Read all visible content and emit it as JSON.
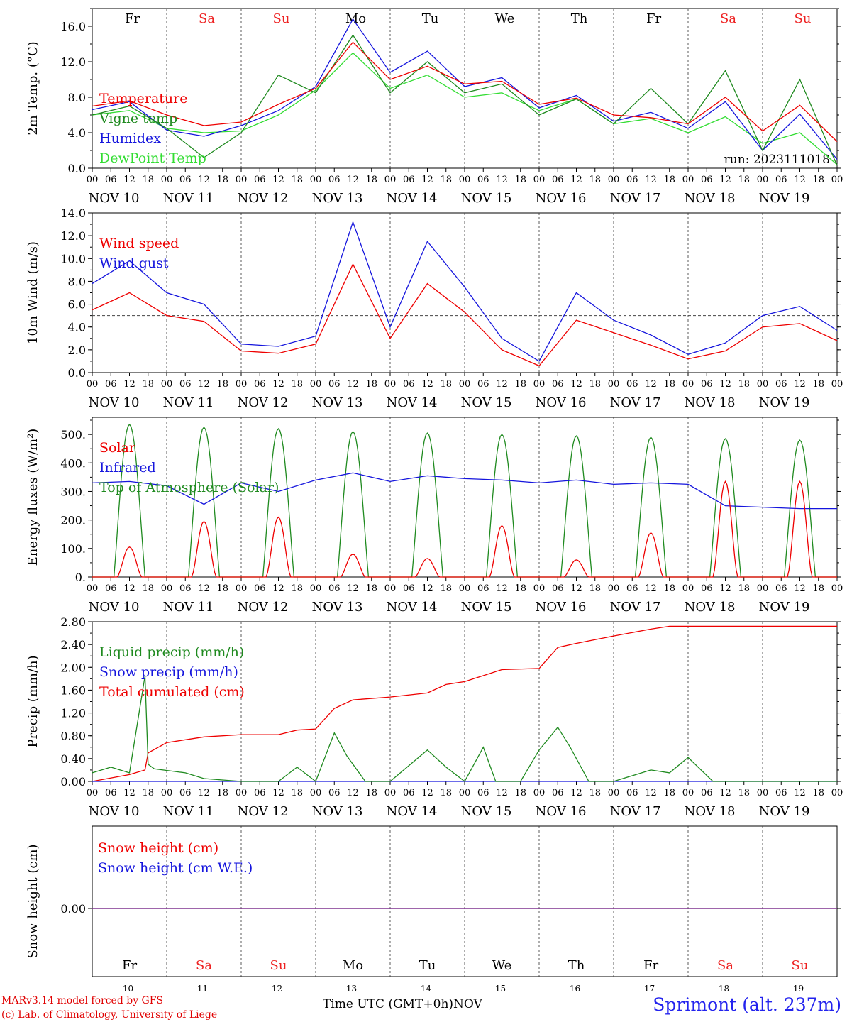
{
  "footer": {
    "model_line": "MARv3.14 model forced by GFS",
    "credit_line": "(c) Lab. of Climatology, University of Liege",
    "time_axis": "Time UTC (GMT+0h)",
    "month": "NOV",
    "station": "Sprimont (alt. 237m)"
  },
  "colors": {
    "red": "#ee0000",
    "green": "#1f8a1f",
    "blue": "#1515dd",
    "lightgreen": "#33dd33",
    "purple": "#7a2a8a",
    "weekend": "#ee2222"
  },
  "chart_data": [
    {
      "type": "line",
      "id": "temperature",
      "ylabel": "2m Temp. (°C)",
      "ylim": [
        0,
        18
      ],
      "yticks": [
        0.0,
        4.0,
        8.0,
        12.0,
        16.0
      ],
      "ytick_labels": [
        "0.0",
        "4.0",
        "8.0",
        "12.0",
        "16.0"
      ],
      "day_labels": [
        "Fr",
        "Sa",
        "Su",
        "Mo",
        "Tu",
        "We",
        "Th",
        "Fr",
        "Sa",
        "Su"
      ],
      "hour_ticks": [
        "00",
        "06",
        "12",
        "18"
      ],
      "date_labels": [
        "NOV 10",
        "NOV 11",
        "NOV 12",
        "NOV 13",
        "NOV 14",
        "NOV 15",
        "NOV 16",
        "NOV 17",
        "NOV 18",
        "NOV 19"
      ],
      "annotation": "run: 2023111018",
      "x_hours": [
        0,
        12,
        24,
        36,
        48,
        60,
        72,
        84,
        96,
        108,
        120,
        132,
        144,
        156,
        168,
        180,
        192,
        204,
        216,
        228,
        240
      ],
      "series": [
        {
          "name": "Temperature",
          "color": "red",
          "values": [
            7.0,
            7.6,
            6.0,
            4.8,
            5.2,
            7.2,
            9.0,
            14.2,
            10.0,
            11.5,
            9.5,
            9.8,
            7.2,
            7.9,
            6.0,
            5.7,
            5.0,
            8.0,
            4.2,
            7.1,
            3.0
          ]
        },
        {
          "name": "Vigne temp",
          "color": "green",
          "values": [
            6.0,
            7.0,
            4.5,
            1.2,
            4.0,
            10.5,
            8.5,
            15.0,
            8.5,
            12.0,
            8.5,
            9.5,
            6.0,
            7.8,
            5.0,
            9.0,
            5.0,
            11.0,
            2.0,
            10.0,
            0.3
          ]
        },
        {
          "name": "Humidex",
          "color": "blue",
          "values": [
            6.6,
            7.5,
            4.3,
            3.6,
            4.8,
            6.5,
            9.2,
            16.8,
            10.8,
            13.2,
            9.2,
            10.2,
            6.8,
            8.2,
            5.3,
            6.3,
            4.5,
            7.5,
            2.0,
            6.1,
            1.0
          ]
        },
        {
          "name": "DewPoint Temp",
          "color": "lightgreen",
          "values": [
            6.0,
            6.5,
            4.5,
            4.0,
            4.2,
            6.0,
            8.8,
            13.0,
            9.0,
            10.5,
            8.0,
            8.5,
            6.5,
            7.8,
            5.0,
            5.6,
            4.0,
            5.8,
            2.8,
            4.0,
            0.4
          ]
        }
      ]
    },
    {
      "type": "line",
      "id": "wind",
      "ylabel": "10m Wind (m/s)",
      "ylim": [
        0,
        14
      ],
      "yticks": [
        0.0,
        2.0,
        4.0,
        6.0,
        8.0,
        10.0,
        12.0,
        14.0
      ],
      "ytick_labels": [
        "0.0",
        "2.0",
        "4.0",
        "6.0",
        "8.0",
        "10.0",
        "12.0",
        "14.0"
      ],
      "hour_ticks": [
        "00",
        "06",
        "12",
        "18"
      ],
      "date_labels": [
        "NOV 10",
        "NOV 11",
        "NOV 12",
        "NOV 13",
        "NOV 14",
        "NOV 15",
        "NOV 16",
        "NOV 17",
        "NOV 18",
        "NOV 19"
      ],
      "reference_line": 5.0,
      "x_hours": [
        0,
        12,
        24,
        36,
        48,
        60,
        72,
        84,
        96,
        108,
        120,
        132,
        144,
        156,
        168,
        180,
        192,
        204,
        216,
        228,
        240
      ],
      "series": [
        {
          "name": "Wind speed",
          "color": "red",
          "values": [
            5.5,
            7.0,
            5.0,
            4.5,
            1.9,
            1.7,
            2.5,
            9.5,
            3.0,
            7.8,
            5.3,
            2.0,
            0.6,
            4.6,
            3.5,
            2.4,
            1.2,
            1.9,
            4.0,
            4.3,
            2.8
          ]
        },
        {
          "name": "Wind gust",
          "color": "blue",
          "values": [
            7.8,
            9.8,
            7.0,
            6.0,
            2.5,
            2.3,
            3.2,
            13.2,
            4.0,
            11.5,
            7.5,
            3.0,
            1.0,
            7.0,
            4.6,
            3.3,
            1.6,
            2.6,
            5.0,
            5.8,
            3.7
          ]
        }
      ]
    },
    {
      "type": "line",
      "id": "energy",
      "ylabel": "Energy fluxes (W/m²)",
      "ylim": [
        0,
        560
      ],
      "yticks": [
        0,
        100,
        200,
        300,
        400,
        500
      ],
      "ytick_labels": [
        "0.",
        "100.",
        "200.",
        "300.",
        "400.",
        "500."
      ],
      "hour_ticks": [
        "00",
        "06",
        "12",
        "18"
      ],
      "date_labels": [
        "NOV 10",
        "NOV 11",
        "NOV 12",
        "NOV 13",
        "NOV 14",
        "NOV 15",
        "NOV 16",
        "NOV 17",
        "NOV 18",
        "NOV 19"
      ],
      "series": [
        {
          "name": "Solar",
          "color": "red",
          "daily_peak": [
            105,
            195,
            210,
            80,
            65,
            180,
            60,
            155,
            335,
            335
          ]
        },
        {
          "name": "Infrared",
          "color": "blue",
          "x_hours": [
            0,
            12,
            24,
            36,
            48,
            60,
            72,
            84,
            96,
            108,
            120,
            132,
            144,
            156,
            168,
            180,
            192,
            204,
            216,
            228,
            240
          ],
          "values": [
            330,
            335,
            320,
            255,
            330,
            300,
            340,
            365,
            335,
            355,
            345,
            340,
            330,
            340,
            325,
            330,
            325,
            250,
            245,
            240,
            240
          ]
        },
        {
          "name": "Top of Atmosphere (Solar)",
          "color": "green",
          "daily_peak": [
            535,
            525,
            520,
            510,
            505,
            500,
            495,
            490,
            485,
            480
          ]
        }
      ]
    },
    {
      "type": "line",
      "id": "precip",
      "ylabel": "Precip (mm/h)",
      "ylim": [
        0,
        2.8
      ],
      "yticks": [
        0.0,
        0.4,
        0.8,
        1.2,
        1.6,
        2.0,
        2.4,
        2.8
      ],
      "ytick_labels": [
        "0.00",
        "0.40",
        "0.80",
        "1.20",
        "1.60",
        "2.00",
        "2.40",
        "2.80"
      ],
      "hour_ticks": [
        "00",
        "06",
        "12",
        "18"
      ],
      "date_labels": [
        "NOV 10",
        "NOV 11",
        "NOV 12",
        "NOV 13",
        "NOV 14",
        "NOV 15",
        "NOV 16",
        "NOV 17",
        "NOV 18",
        "NOV 19"
      ],
      "series": [
        {
          "name": "Liquid precip (mm/h)",
          "color": "green",
          "x_hours": [
            0,
            6,
            12,
            17,
            18,
            20,
            30,
            36,
            48,
            60,
            66,
            72,
            78,
            82,
            88,
            96,
            108,
            114,
            120,
            126,
            130,
            138,
            144,
            150,
            154,
            160,
            168,
            180,
            186,
            192,
            200,
            240
          ],
          "values": [
            0.15,
            0.25,
            0.15,
            1.85,
            0.3,
            0.22,
            0.15,
            0.05,
            0.0,
            0.0,
            0.25,
            0.0,
            0.85,
            0.45,
            0.0,
            0.0,
            0.55,
            0.25,
            0.0,
            0.6,
            0.0,
            0.0,
            0.55,
            0.95,
            0.6,
            0.0,
            0.0,
            0.2,
            0.15,
            0.42,
            0.0,
            0.0
          ]
        },
        {
          "name": "Snow precip (mm/h)",
          "color": "blue",
          "x_hours": [
            0,
            240
          ],
          "values": [
            0.0,
            0.0
          ]
        },
        {
          "name": "Total cumulated (cm)",
          "color": "red",
          "x_hours": [
            0,
            12,
            17,
            18,
            24,
            36,
            48,
            60,
            66,
            72,
            78,
            84,
            96,
            108,
            114,
            120,
            132,
            144,
            150,
            156,
            168,
            180,
            186,
            240
          ],
          "values": [
            0.0,
            0.12,
            0.2,
            0.5,
            0.68,
            0.78,
            0.82,
            0.82,
            0.9,
            0.92,
            1.28,
            1.43,
            1.48,
            1.55,
            1.7,
            1.75,
            1.96,
            1.98,
            2.35,
            2.42,
            2.55,
            2.67,
            2.72,
            2.72
          ]
        }
      ]
    },
    {
      "type": "line",
      "id": "snow",
      "ylabel": "Snow height (cm)",
      "yticks": [
        0.0
      ],
      "ytick_labels": [
        "0.00"
      ],
      "day_labels": [
        "Fr",
        "Sa",
        "Su",
        "Mo",
        "Tu",
        "We",
        "Th",
        "Fr",
        "Sa",
        "Su"
      ],
      "date_numbers": [
        "10",
        "11",
        "12",
        "13",
        "14",
        "15",
        "16",
        "17",
        "18",
        "19"
      ],
      "series": [
        {
          "name": "Snow height (cm)",
          "color": "red",
          "values": [
            0.0,
            0.0
          ]
        },
        {
          "name": "Snow height (cm W.E.)",
          "color": "blue",
          "values": [
            0.0,
            0.0
          ]
        }
      ]
    }
  ]
}
